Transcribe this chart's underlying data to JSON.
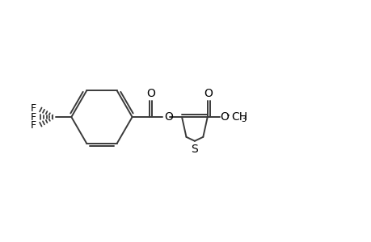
{
  "bg_color": "#ffffff",
  "line_color": "#3a3a3a",
  "line_width": 1.4,
  "text_color": "#000000",
  "figsize": [
    4.6,
    3.0
  ],
  "dpi": 100,
  "xlim": [
    0,
    46
  ],
  "ylim": [
    0,
    30
  ]
}
